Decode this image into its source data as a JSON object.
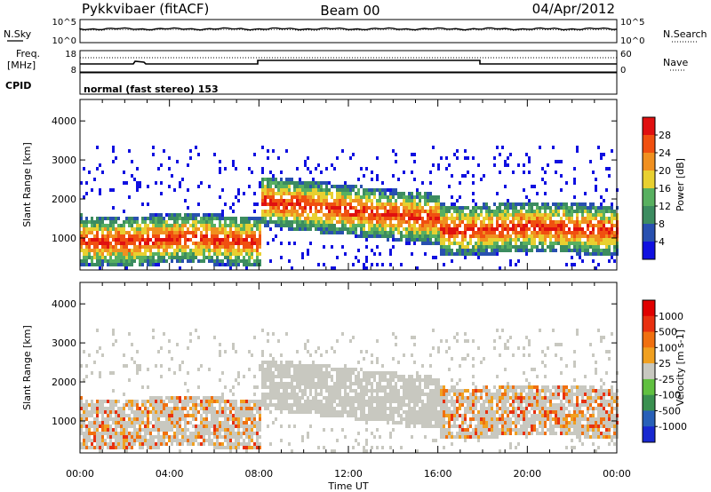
{
  "header": {
    "station": "Pykkvibaer (fitACF)",
    "beam": "Beam 00",
    "date": "04/Apr/2012"
  },
  "strip_labels": {
    "nsky": "N.Sky",
    "nsearch": "N.Search",
    "freq_line1": "Freq.",
    "freq_line2": "[MHz]",
    "nave": "Nave",
    "cpid": "CPID",
    "cpid_value": "normal (fast stereo) 153"
  },
  "strip_ticks": {
    "noise_left": [
      "10^5",
      "10^0"
    ],
    "noise_right": [
      "10^5",
      "10^0"
    ],
    "freq_left": [
      "18",
      "8"
    ],
    "nave_right": [
      "60",
      "0"
    ]
  },
  "colors": {
    "power": [
      "#1010e0",
      "#2850b0",
      "#3c8c60",
      "#58b060",
      "#e8d030",
      "#f09020",
      "#f05010",
      "#e01010"
    ],
    "velocity": [
      "#1828d0",
      "#2860b8",
      "#3a9050",
      "#60c040",
      "#c8c8c0",
      "#f0a020",
      "#f07010",
      "#e83010",
      "#e00000"
    ],
    "text": "#000000"
  },
  "chart_data": [
    {
      "type": "heatmap",
      "name_ref": "power",
      "ylabel": "Slant Range [km]",
      "x_range_hours": [
        0,
        24
      ],
      "ylim_km": [
        180,
        4550
      ],
      "y_ticks": [
        "1000",
        "2000",
        "3000",
        "4000"
      ],
      "colorbar": {
        "label": "Power [dB]",
        "ticks": [
          "4",
          "8",
          "12",
          "16",
          "20",
          "24",
          "28"
        ]
      }
    },
    {
      "type": "heatmap",
      "name_ref": "velocity",
      "ylabel": "Slant Range [km]",
      "x_range_hours": [
        0,
        24
      ],
      "ylim_km": [
        180,
        4550
      ],
      "y_ticks": [
        "1000",
        "2000",
        "3000",
        "4000"
      ],
      "colorbar": {
        "label": "Velocity [m s-1]",
        "ticks": [
          "1000",
          "500",
          "100",
          "25",
          "-25",
          "-100",
          "-500",
          "-1000"
        ]
      }
    }
  ],
  "x_axis": {
    "ticks": [
      "00:00",
      "04:00",
      "08:00",
      "12:00",
      "16:00",
      "20:00",
      "00:00"
    ],
    "label": "Time UT"
  }
}
